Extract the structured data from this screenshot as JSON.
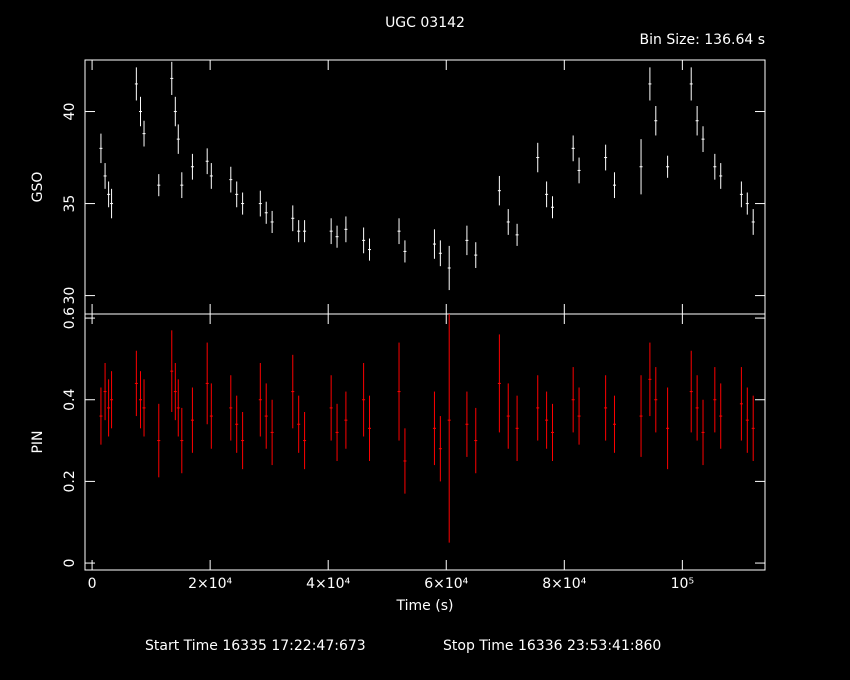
{
  "chart_data": [
    {
      "type": "scatter",
      "title": "UGC 03142",
      "subtitle": "Bin Size: 136.64 s",
      "ylabel": "GSO",
      "color": "#ffffff",
      "x": [
        1500,
        2200,
        2800,
        3300,
        7500,
        8200,
        8800,
        11300,
        13500,
        14100,
        14600,
        15200,
        17000,
        19500,
        20200,
        23500,
        24500,
        25500,
        28500,
        29500,
        30500,
        34000,
        35000,
        36000,
        40500,
        41500,
        43000,
        46000,
        47000,
        52000,
        53000,
        58000,
        59000,
        60500,
        63500,
        65000,
        69000,
        70500,
        72000,
        75500,
        77000,
        78000,
        81500,
        82500,
        87000,
        88500,
        93000,
        94500,
        95500,
        97500,
        101500,
        102500,
        103500,
        105500,
        106500,
        110000,
        111000,
        112000
      ],
      "values": [
        38,
        36.5,
        35.5,
        35,
        41.5,
        40,
        38.8,
        36,
        41.8,
        40,
        38.5,
        36,
        37,
        37.3,
        36.5,
        36.3,
        35.5,
        35,
        35,
        34.5,
        34,
        34.2,
        33.5,
        33.5,
        33.5,
        33.2,
        33.6,
        33,
        32.5,
        33.5,
        32.4,
        32.8,
        32.3,
        31.5,
        33,
        32.2,
        35.7,
        34,
        33.3,
        37.5,
        35.5,
        34.8,
        38,
        36.8,
        37.5,
        36,
        37,
        41.5,
        39.5,
        37,
        41.5,
        39.5,
        38.5,
        37,
        36.5,
        35.5,
        35,
        34
      ],
      "errors": [
        0.8,
        0.7,
        0.7,
        0.8,
        0.9,
        0.8,
        0.7,
        0.6,
        0.9,
        0.8,
        0.8,
        0.7,
        0.7,
        0.7,
        0.7,
        0.7,
        0.7,
        0.6,
        0.7,
        0.6,
        0.6,
        0.7,
        0.6,
        0.6,
        0.7,
        0.6,
        0.7,
        0.7,
        0.6,
        0.7,
        0.6,
        0.8,
        0.7,
        1.2,
        0.8,
        0.7,
        0.8,
        0.7,
        0.6,
        0.8,
        0.7,
        0.6,
        0.7,
        0.7,
        0.7,
        0.7,
        1.5,
        0.9,
        0.8,
        0.6,
        0.9,
        0.8,
        0.7,
        0.7,
        0.7,
        0.7,
        0.6,
        0.7
      ],
      "xlim": [
        -1200,
        114000
      ],
      "xticks": [
        0,
        20000,
        40000,
        60000,
        80000,
        100000
      ],
      "ylim": [
        29.0,
        42.8
      ],
      "yticks": [
        30,
        35,
        40
      ]
    },
    {
      "type": "scatter",
      "ylabel": "PIN",
      "xlabel": "Time (s)",
      "color": "#ff0000",
      "x": [
        1500,
        2200,
        2800,
        3300,
        7500,
        8200,
        8800,
        11300,
        13500,
        14100,
        14600,
        15200,
        17000,
        19500,
        20200,
        23500,
        24500,
        25500,
        28500,
        29500,
        30500,
        34000,
        35000,
        36000,
        40500,
        41500,
        43000,
        46000,
        47000,
        52000,
        53000,
        58000,
        59000,
        60500,
        63500,
        65000,
        69000,
        70500,
        72000,
        75500,
        77000,
        78000,
        81500,
        82500,
        87000,
        88500,
        93000,
        94500,
        95500,
        97500,
        101500,
        102500,
        103500,
        105500,
        106500,
        110000,
        111000,
        112000
      ],
      "values": [
        0.36,
        0.42,
        0.38,
        0.4,
        0.44,
        0.4,
        0.38,
        0.3,
        0.47,
        0.42,
        0.38,
        0.3,
        0.35,
        0.44,
        0.36,
        0.38,
        0.34,
        0.3,
        0.4,
        0.36,
        0.32,
        0.42,
        0.34,
        0.3,
        0.38,
        0.32,
        0.35,
        0.4,
        0.33,
        0.42,
        0.25,
        0.33,
        0.28,
        0.35,
        0.34,
        0.3,
        0.44,
        0.36,
        0.33,
        0.38,
        0.35,
        0.32,
        0.4,
        0.36,
        0.38,
        0.34,
        0.36,
        0.45,
        0.4,
        0.33,
        0.42,
        0.38,
        0.32,
        0.4,
        0.36,
        0.39,
        0.35,
        0.33
      ],
      "errors": [
        0.07,
        0.07,
        0.07,
        0.07,
        0.08,
        0.07,
        0.07,
        0.09,
        0.1,
        0.07,
        0.07,
        0.08,
        0.08,
        0.1,
        0.08,
        0.08,
        0.07,
        0.07,
        0.09,
        0.08,
        0.08,
        0.09,
        0.07,
        0.07,
        0.08,
        0.07,
        0.07,
        0.09,
        0.08,
        0.12,
        0.08,
        0.09,
        0.08,
        0.3,
        0.08,
        0.08,
        0.12,
        0.08,
        0.08,
        0.08,
        0.07,
        0.07,
        0.08,
        0.07,
        0.08,
        0.07,
        0.1,
        0.09,
        0.08,
        0.1,
        0.1,
        0.08,
        0.08,
        0.08,
        0.08,
        0.09,
        0.08,
        0.08
      ],
      "xlim": [
        -1200,
        114000
      ],
      "xticks": [
        0,
        {
          "value": 20000,
          "label": "2×10⁴"
        },
        {
          "value": 40000,
          "label": "4×10⁴"
        },
        {
          "value": 60000,
          "label": "6×10⁴"
        },
        {
          "value": 80000,
          "label": "8×10⁴"
        },
        {
          "value": 100000,
          "label": "10⁵"
        }
      ],
      "ylim": [
        -0.017,
        0.61
      ],
      "yticks": [
        0,
        0.2,
        0.4,
        0.6
      ]
    }
  ],
  "footer": {
    "start": "Start Time 16335 17:22:47:673",
    "stop": "Stop Time 16336 23:53:41:860"
  }
}
